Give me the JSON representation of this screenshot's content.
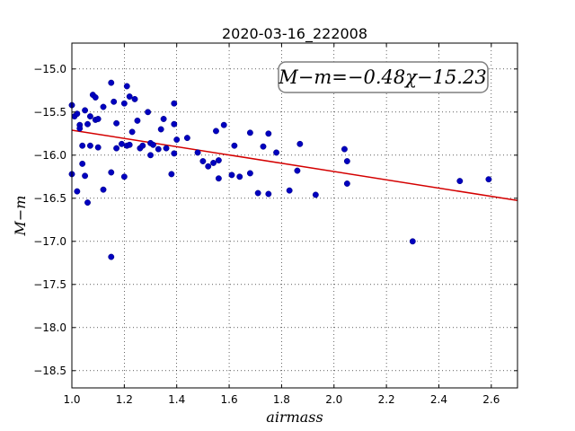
{
  "chart_data": {
    "type": "scatter",
    "title": "2020-03-16_222008",
    "xlabel": "airmass",
    "ylabel": "M−m",
    "xlim": [
      1.0,
      2.7
    ],
    "ylim": [
      -14.7,
      -18.7
    ],
    "y_inverted": true,
    "grid": true,
    "x_ticks": [
      "1.0",
      "1.2",
      "1.4",
      "1.6",
      "1.8",
      "2.0",
      "2.2",
      "2.4",
      "2.6"
    ],
    "y_ticks": [
      "−15.0",
      "−15.5",
      "−16.0",
      "−16.5",
      "−17.0",
      "−17.5",
      "−18.0",
      "−18.5"
    ],
    "annotation": "M−m=−0.48χ−15.23",
    "point_color": "#0000bf",
    "fit_color": "#d40000",
    "fit": {
      "slope": -0.48,
      "intercept": -15.23,
      "x": [
        1.0,
        2.7
      ]
    },
    "series": [
      {
        "points": [
          [
            1.0,
            -15.42
          ],
          [
            1.01,
            -15.55
          ],
          [
            1.0,
            -16.22
          ],
          [
            1.02,
            -15.52
          ],
          [
            1.03,
            -15.65
          ],
          [
            1.03,
            -15.69
          ],
          [
            1.04,
            -15.89
          ],
          [
            1.05,
            -15.48
          ],
          [
            1.04,
            -16.1
          ],
          [
            1.05,
            -16.24
          ],
          [
            1.06,
            -16.55
          ],
          [
            1.07,
            -15.55
          ],
          [
            1.06,
            -15.64
          ],
          [
            1.07,
            -15.89
          ],
          [
            1.08,
            -15.3
          ],
          [
            1.09,
            -15.33
          ],
          [
            1.09,
            -15.59
          ],
          [
            1.1,
            -15.58
          ],
          [
            1.1,
            -15.91
          ],
          [
            1.12,
            -15.44
          ],
          [
            1.12,
            -16.4
          ],
          [
            1.02,
            -16.42
          ],
          [
            1.15,
            -15.16
          ],
          [
            1.15,
            -16.2
          ],
          [
            1.15,
            -17.18
          ],
          [
            1.16,
            -15.38
          ],
          [
            1.17,
            -15.63
          ],
          [
            1.17,
            -15.92
          ],
          [
            1.19,
            -15.87
          ],
          [
            1.2,
            -15.4
          ],
          [
            1.21,
            -15.2
          ],
          [
            1.22,
            -15.32
          ],
          [
            1.21,
            -15.89
          ],
          [
            1.22,
            -15.88
          ],
          [
            1.2,
            -16.25
          ],
          [
            1.23,
            -15.73
          ],
          [
            1.24,
            -15.35
          ],
          [
            1.25,
            -15.6
          ],
          [
            1.26,
            -15.92
          ],
          [
            1.27,
            -15.89
          ],
          [
            1.29,
            -15.5
          ],
          [
            1.3,
            -15.86
          ],
          [
            1.3,
            -16.0
          ],
          [
            1.31,
            -15.88
          ],
          [
            1.33,
            -15.93
          ],
          [
            1.34,
            -15.7
          ],
          [
            1.35,
            -15.58
          ],
          [
            1.36,
            -15.92
          ],
          [
            1.38,
            -16.22
          ],
          [
            1.39,
            -15.4
          ],
          [
            1.39,
            -15.64
          ],
          [
            1.4,
            -15.82
          ],
          [
            1.39,
            -15.98
          ],
          [
            1.44,
            -15.8
          ],
          [
            1.48,
            -15.97
          ],
          [
            1.5,
            -16.07
          ],
          [
            1.52,
            -16.13
          ],
          [
            1.54,
            -16.09
          ],
          [
            1.55,
            -15.72
          ],
          [
            1.56,
            -16.06
          ],
          [
            1.56,
            -16.27
          ],
          [
            1.58,
            -15.65
          ],
          [
            1.61,
            -16.23
          ],
          [
            1.62,
            -15.89
          ],
          [
            1.64,
            -16.25
          ],
          [
            1.68,
            -15.74
          ],
          [
            1.68,
            -16.21
          ],
          [
            1.71,
            -16.44
          ],
          [
            1.73,
            -15.9
          ],
          [
            1.75,
            -15.75
          ],
          [
            1.75,
            -16.45
          ],
          [
            1.78,
            -15.97
          ],
          [
            1.83,
            -16.41
          ],
          [
            1.86,
            -16.18
          ],
          [
            1.87,
            -15.87
          ],
          [
            1.93,
            -16.46
          ],
          [
            2.04,
            -15.93
          ],
          [
            2.05,
            -16.07
          ],
          [
            2.05,
            -16.33
          ],
          [
            2.3,
            -17.0
          ],
          [
            2.48,
            -16.3
          ],
          [
            2.59,
            -16.28
          ]
        ]
      }
    ]
  }
}
